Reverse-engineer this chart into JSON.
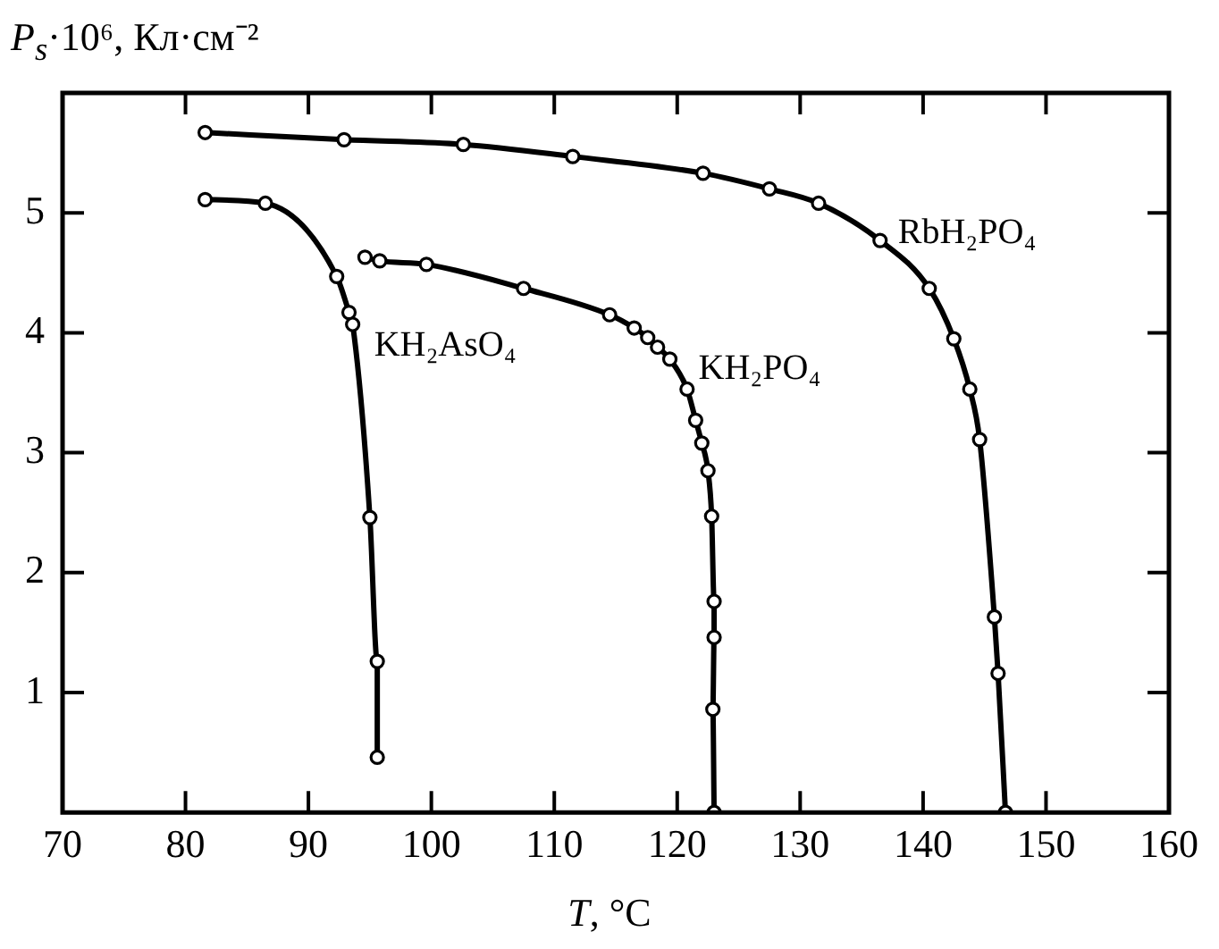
{
  "chart_data": {
    "type": "line",
    "ylabel": "P$_{s}$·10⁶, Кл·см⁻²",
    "xlabel": "T, °C",
    "xlim": [
      70,
      160
    ],
    "xticks": [
      70,
      80,
      90,
      100,
      110,
      120,
      130,
      140,
      150,
      160
    ],
    "ylim": [
      0,
      6
    ],
    "yticks": [
      1,
      2,
      3,
      4,
      5
    ],
    "grid": false,
    "legend": false,
    "marker": "circle",
    "line_style": "solid",
    "series": [
      {
        "name": "RbH₂PO₄",
        "color": "#000000",
        "x": [
          81.6,
          92.9,
          102.6,
          111.5,
          122.1,
          127.5,
          131.5,
          136.5,
          140.5,
          142.5,
          143.8,
          144.6,
          145.8,
          146.1,
          146.7
        ],
        "values": [
          5.67,
          5.61,
          5.57,
          5.47,
          5.33,
          5.2,
          5.08,
          4.77,
          4.37,
          3.95,
          3.53,
          3.11,
          1.63,
          1.16,
          0
        ]
      },
      {
        "name": "KH₂AsO₄",
        "color": "#000000",
        "x": [
          81.6,
          86.5,
          92.3,
          93.3,
          93.6,
          95.0,
          95.6,
          95.6
        ],
        "values": [
          5.11,
          5.08,
          4.47,
          4.17,
          4.07,
          2.46,
          1.26,
          0.46
        ]
      },
      {
        "name": "KH₂PO₄",
        "color": "#000000",
        "x": [
          94.6,
          95.8,
          99.6,
          107.5,
          114.5,
          116.5,
          117.6,
          118.4,
          119.4,
          120.8,
          121.5,
          122.0,
          122.5,
          122.8,
          123.0,
          123.0,
          122.9,
          123.0
        ],
        "values": [
          4.63,
          4.6,
          4.57,
          4.37,
          4.15,
          4.04,
          3.96,
          3.88,
          3.78,
          3.53,
          3.27,
          3.08,
          2.85,
          2.47,
          1.76,
          1.46,
          0.86,
          0
        ]
      }
    ]
  }
}
